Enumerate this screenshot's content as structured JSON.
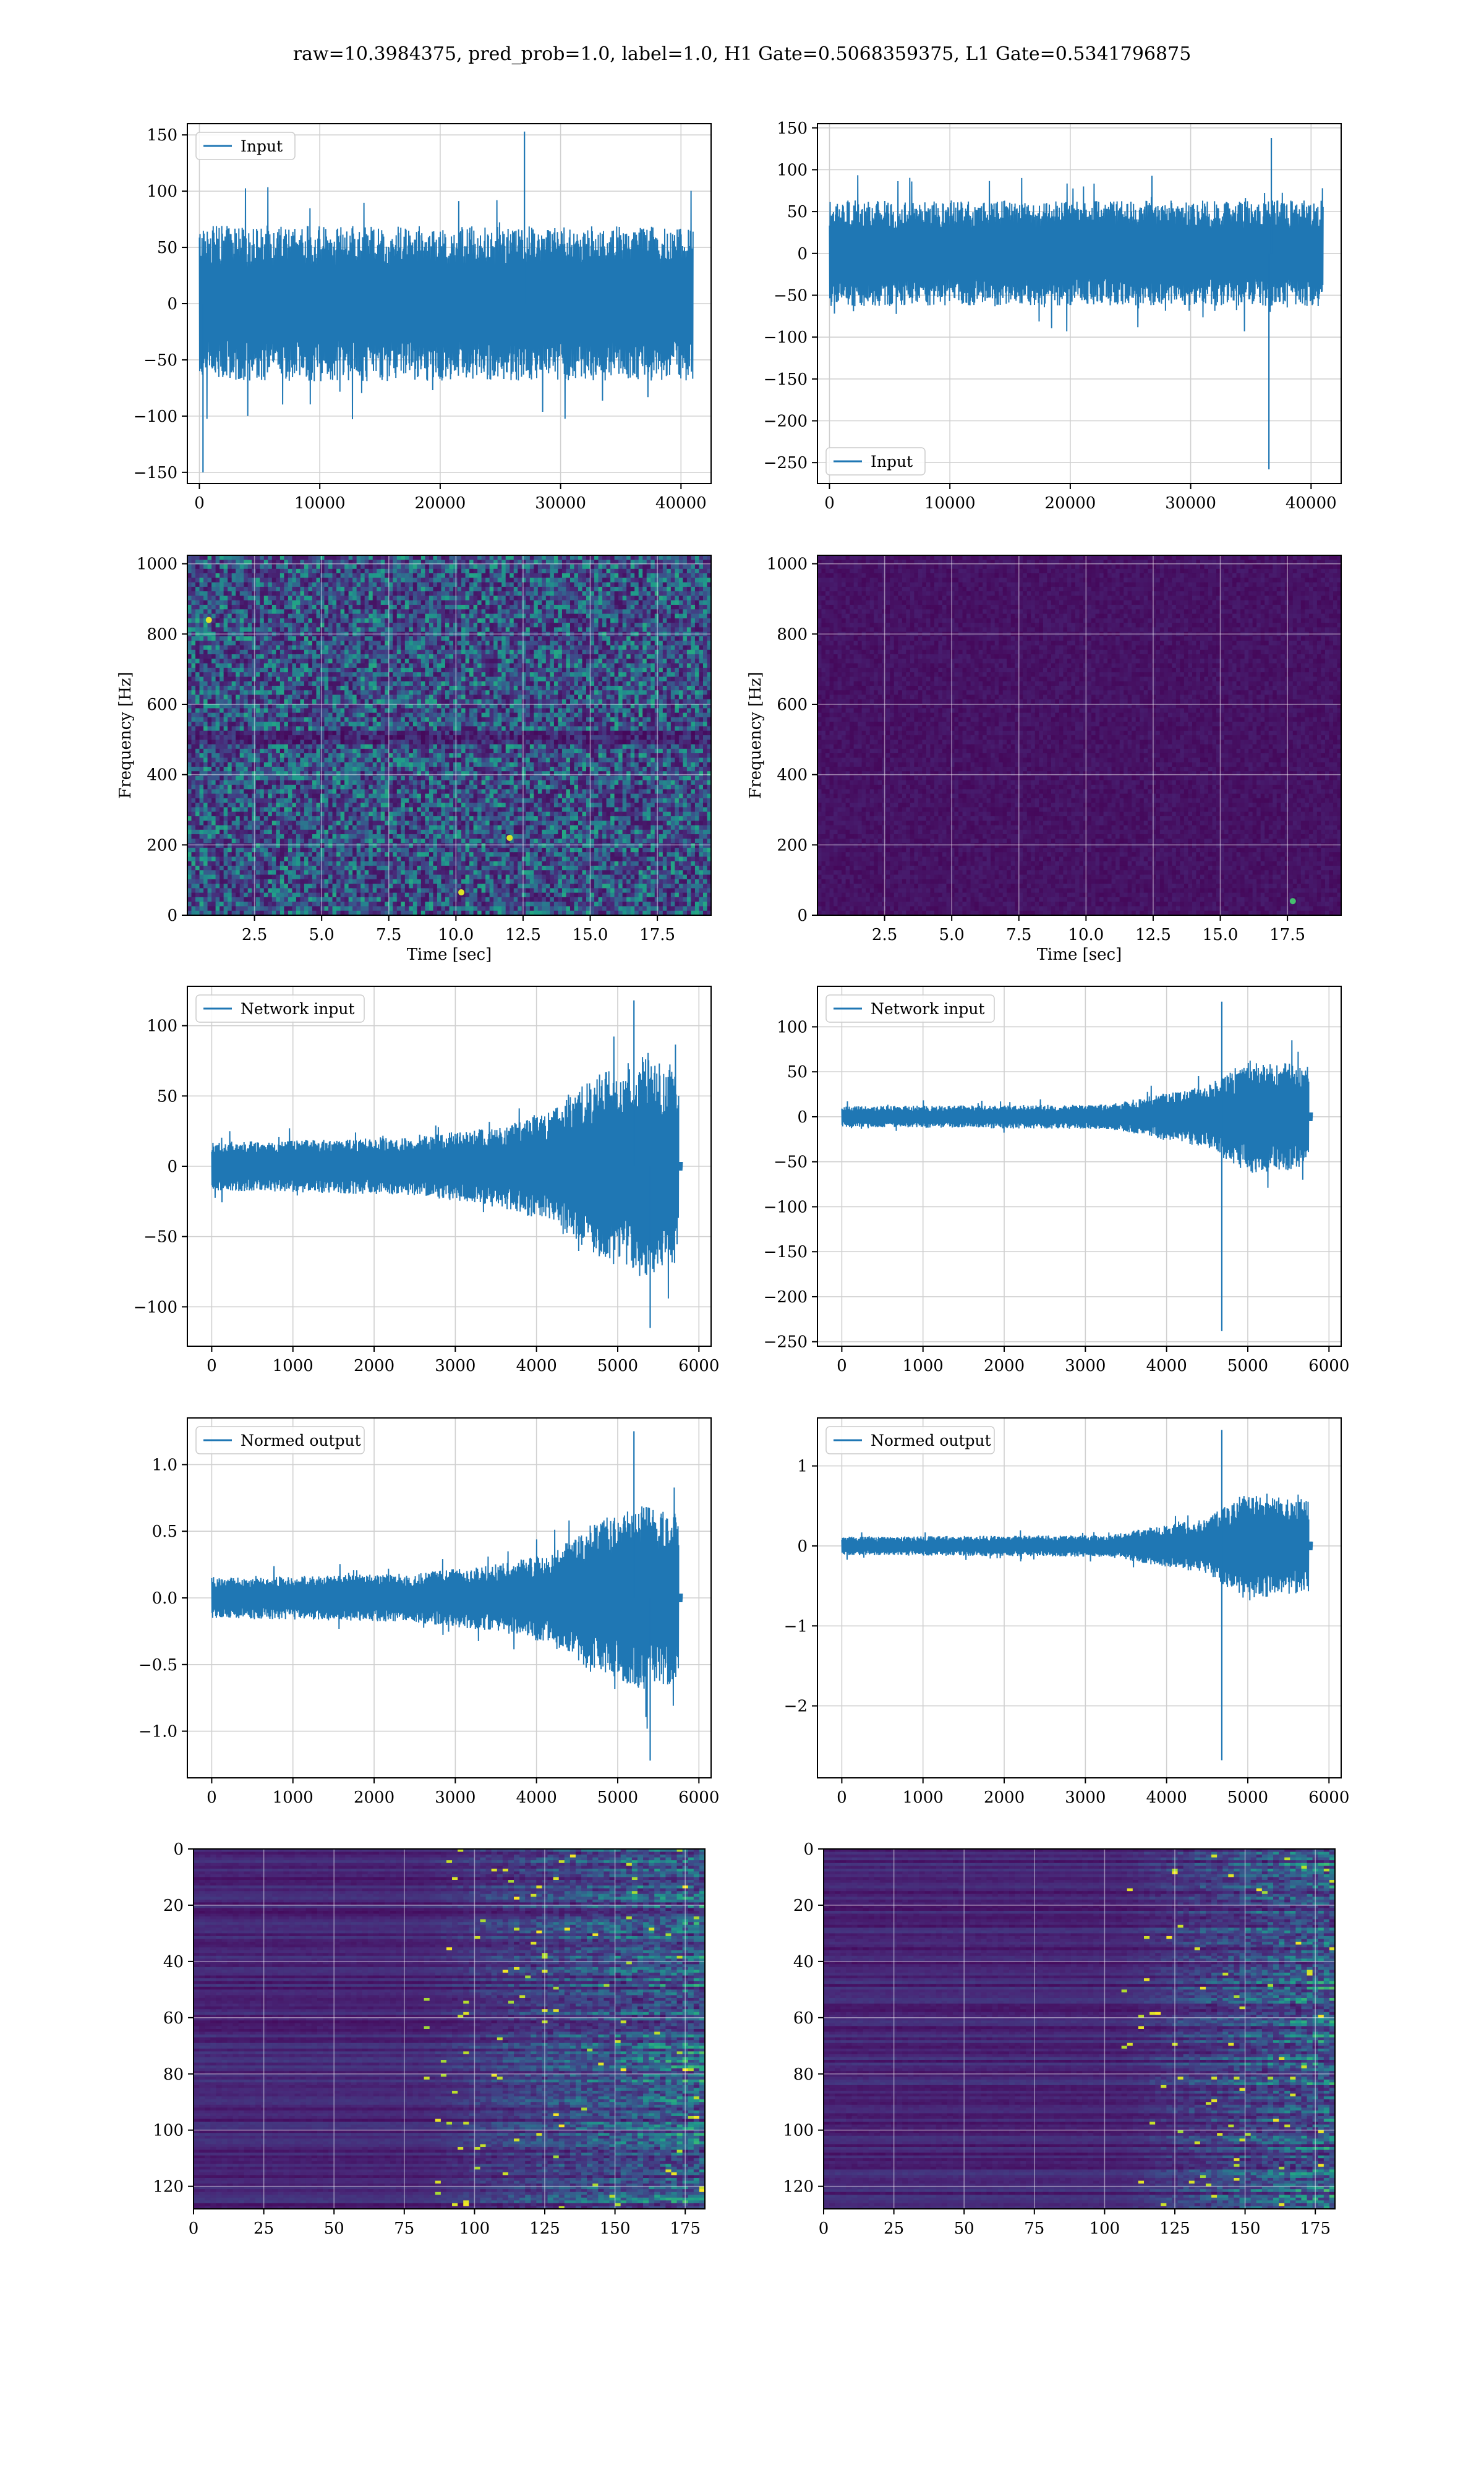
{
  "suptitle": "raw=10.3984375, pred_prob=1.0, label=1.0, H1 Gate=0.5068359375, L1 Gate=0.5341796875",
  "colors": {
    "series": "#1f77b4",
    "grid": "#d0d0d0",
    "viridis_low": "#440154",
    "viridis_mid": "#21918c",
    "viridis_high": "#fde725"
  },
  "chart_data": [
    {
      "id": "input-h1",
      "type": "line",
      "series": [
        {
          "name": "Input",
          "envelope": {
            "x": [
              0,
              41000
            ],
            "center": 0,
            "typical_amplitude": 60,
            "extremes": [
              {
                "x": 27000,
                "y": 153
              },
              {
                "x": 300,
                "y": -150
              }
            ]
          }
        }
      ],
      "xlim": [
        -1000,
        42500
      ],
      "ylim": [
        -160,
        160
      ],
      "xticks": [
        0,
        10000,
        20000,
        30000,
        40000
      ],
      "yticks": [
        -150,
        -100,
        -50,
        0,
        50,
        100,
        150
      ],
      "legend": "upper left",
      "grid": true,
      "xlabel": "",
      "ylabel": ""
    },
    {
      "id": "input-l1",
      "type": "line",
      "series": [
        {
          "name": "Input",
          "envelope": {
            "x": [
              0,
              41000
            ],
            "center": 0,
            "typical_amplitude": 55,
            "extremes": [
              {
                "x": 36500,
                "y": -258
              },
              {
                "x": 36700,
                "y": 138
              }
            ]
          }
        }
      ],
      "xlim": [
        -1000,
        42500
      ],
      "ylim": [
        -275,
        155
      ],
      "xticks": [
        0,
        10000,
        20000,
        30000,
        40000
      ],
      "yticks": [
        -250,
        -200,
        -150,
        -100,
        -50,
        0,
        50,
        100,
        150
      ],
      "legend": "lower left",
      "grid": true,
      "xlabel": "",
      "ylabel": ""
    },
    {
      "id": "spectrogram-h1",
      "type": "heatmap",
      "xlabel": "Time [sec]",
      "ylabel": "Frequency [Hz]",
      "xlim": [
        0,
        19.5
      ],
      "ylim": [
        0,
        1024
      ],
      "xticks": [
        2.5,
        5.0,
        7.5,
        10.0,
        12.5,
        15.0,
        17.5
      ],
      "yticks": [
        0,
        200,
        400,
        600,
        800,
        1000
      ],
      "colormap": "viridis",
      "grid": true,
      "description_values": {
        "background_level": "mid",
        "notable_bright_points": [
          {
            "t": 12.0,
            "f": 220
          },
          {
            "t": 10.2,
            "f": 65
          },
          {
            "t": 0.8,
            "f": 840
          }
        ]
      }
    },
    {
      "id": "spectrogram-l1",
      "type": "heatmap",
      "xlabel": "Time [sec]",
      "ylabel": "Frequency [Hz]",
      "xlim": [
        0,
        19.5
      ],
      "ylim": [
        0,
        1024
      ],
      "xticks": [
        2.5,
        5.0,
        7.5,
        10.0,
        12.5,
        15.0,
        17.5
      ],
      "yticks": [
        0,
        200,
        400,
        600,
        800,
        1000
      ],
      "colormap": "viridis",
      "grid": true,
      "description_values": {
        "background_level": "low",
        "notable_bright_points": [
          {
            "t": 17.7,
            "f": 40
          }
        ]
      }
    },
    {
      "id": "network-input-h1",
      "type": "line",
      "series": [
        {
          "name": "Network input",
          "envelope": {
            "x": [
              0,
              5750
            ],
            "tail_to": 5800,
            "center": 0,
            "segments": [
              {
                "x": 0,
                "amp": 15
              },
              {
                "x": 2500,
                "amp": 18
              },
              {
                "x": 3500,
                "amp": 25
              },
              {
                "x": 4200,
                "amp": 35
              },
              {
                "x": 4700,
                "amp": 55
              },
              {
                "x": 5300,
                "amp": 70
              },
              {
                "x": 5750,
                "amp": 60
              }
            ],
            "extremes": [
              {
                "x": 5200,
                "y": 118
              },
              {
                "x": 5400,
                "y": -115
              }
            ]
          }
        }
      ],
      "xlim": [
        -300,
        6150
      ],
      "ylim": [
        -128,
        128
      ],
      "xticks": [
        0,
        1000,
        2000,
        3000,
        4000,
        5000,
        6000
      ],
      "yticks": [
        -100,
        -50,
        0,
        50,
        100
      ],
      "legend": "upper left",
      "grid": true,
      "xlabel": "",
      "ylabel": ""
    },
    {
      "id": "network-input-l1",
      "type": "line",
      "series": [
        {
          "name": "Network input",
          "envelope": {
            "x": [
              0,
              5750
            ],
            "tail_to": 5800,
            "center": 0,
            "segments": [
              {
                "x": 0,
                "amp": 10
              },
              {
                "x": 3300,
                "amp": 12
              },
              {
                "x": 3800,
                "amp": 20
              },
              {
                "x": 4500,
                "amp": 30
              },
              {
                "x": 5000,
                "amp": 55
              },
              {
                "x": 5750,
                "amp": 50
              }
            ],
            "extremes": [
              {
                "x": 4680,
                "y": -238
              },
              {
                "x": 4680,
                "y": 128
              }
            ]
          }
        }
      ],
      "xlim": [
        -300,
        6150
      ],
      "ylim": [
        -255,
        145
      ],
      "xticks": [
        0,
        1000,
        2000,
        3000,
        4000,
        5000,
        6000
      ],
      "yticks": [
        -250,
        -200,
        -150,
        -100,
        -50,
        0,
        50,
        100
      ],
      "legend": "upper left",
      "grid": true,
      "xlabel": "",
      "ylabel": ""
    },
    {
      "id": "normed-output-h1",
      "type": "line",
      "series": [
        {
          "name": "Normed output",
          "envelope": {
            "x": [
              0,
              5750
            ],
            "tail_to": 5800,
            "center": 0,
            "segments": [
              {
                "x": 0,
                "amp": 0.13
              },
              {
                "x": 2500,
                "amp": 0.16
              },
              {
                "x": 3500,
                "amp": 0.22
              },
              {
                "x": 4200,
                "amp": 0.3
              },
              {
                "x": 4700,
                "amp": 0.5
              },
              {
                "x": 5300,
                "amp": 0.6
              },
              {
                "x": 5750,
                "amp": 0.55
              }
            ],
            "extremes": [
              {
                "x": 5200,
                "y": 1.25
              },
              {
                "x": 5400,
                "y": -1.22
              }
            ]
          }
        }
      ],
      "xlim": [
        -300,
        6150
      ],
      "ylim": [
        -1.35,
        1.35
      ],
      "xticks": [
        0,
        1000,
        2000,
        3000,
        4000,
        5000,
        6000
      ],
      "yticks": [
        -1.0,
        -0.5,
        0.0,
        0.5,
        1.0
      ],
      "legend": "upper left",
      "grid": true,
      "xlabel": "",
      "ylabel": ""
    },
    {
      "id": "normed-output-l1",
      "type": "line",
      "series": [
        {
          "name": "Normed output",
          "envelope": {
            "x": [
              0,
              5750
            ],
            "tail_to": 5800,
            "center": 0,
            "segments": [
              {
                "x": 0,
                "amp": 0.1
              },
              {
                "x": 3300,
                "amp": 0.12
              },
              {
                "x": 3800,
                "amp": 0.2
              },
              {
                "x": 4500,
                "amp": 0.3
              },
              {
                "x": 5000,
                "amp": 0.6
              },
              {
                "x": 5750,
                "amp": 0.5
              }
            ],
            "extremes": [
              {
                "x": 4680,
                "y": -2.68
              },
              {
                "x": 4680,
                "y": 1.45
              }
            ]
          }
        }
      ],
      "xlim": [
        -300,
        6150
      ],
      "ylim": [
        -2.9,
        1.6
      ],
      "xticks": [
        0,
        1000,
        2000,
        3000,
        4000,
        5000,
        6000
      ],
      "yticks": [
        -2,
        -1,
        0,
        1
      ],
      "legend": "upper left",
      "grid": true,
      "xlabel": "",
      "ylabel": ""
    },
    {
      "id": "feature-map-h1",
      "type": "heatmap",
      "xlim": [
        0,
        182
      ],
      "ylim": [
        128,
        0
      ],
      "xticks": [
        0,
        25,
        50,
        75,
        100,
        125,
        150,
        175
      ],
      "yticks": [
        0,
        20,
        40,
        60,
        80,
        100,
        120
      ],
      "colormap": "viridis",
      "grid": true,
      "xlabel": "",
      "ylabel": "",
      "description_values": {
        "activity_onset_x": 100,
        "peak_region_x": [
          130,
          175
        ]
      }
    },
    {
      "id": "feature-map-l1",
      "type": "heatmap",
      "xlim": [
        0,
        182
      ],
      "ylim": [
        128,
        0
      ],
      "xticks": [
        0,
        25,
        50,
        75,
        100,
        125,
        150,
        175
      ],
      "yticks": [
        0,
        20,
        40,
        60,
        80,
        100,
        120
      ],
      "colormap": "viridis",
      "grid": true,
      "xlabel": "",
      "ylabel": "",
      "description_values": {
        "activity_onset_x": 125,
        "peak_region_x": [
          135,
          175
        ]
      }
    }
  ]
}
